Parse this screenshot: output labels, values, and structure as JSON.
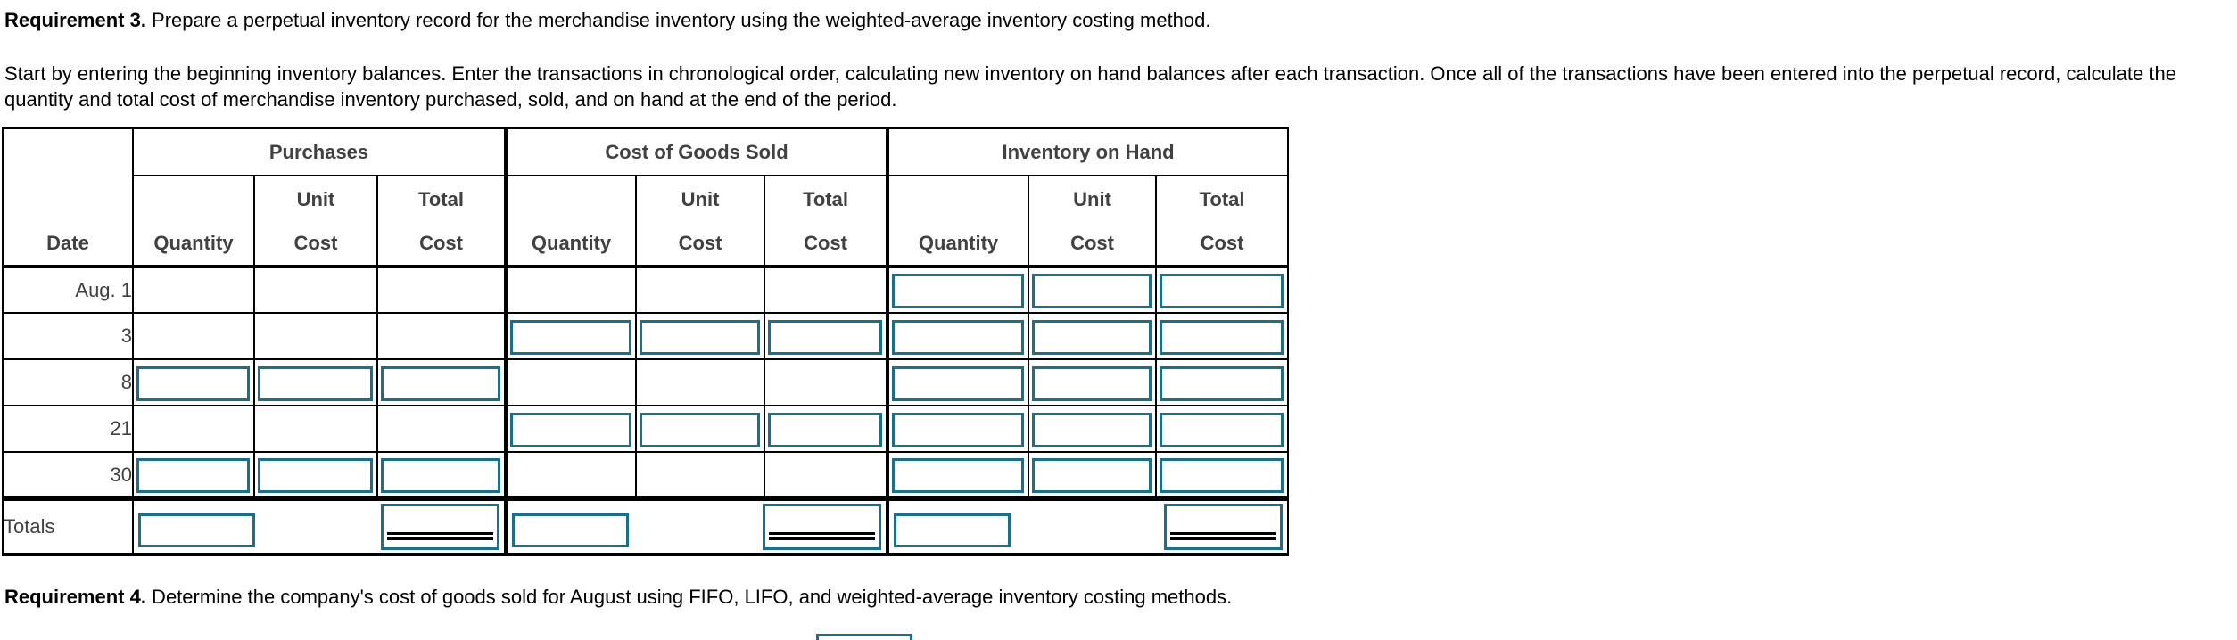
{
  "requirement3": {
    "label": "Requirement 3.",
    "text": " Prepare a perpetual inventory record for the merchandise inventory using the weighted-average inventory costing method."
  },
  "instructions": "Start by entering the beginning inventory balances. Enter the transactions in chronological order, calculating new inventory on hand balances after each transaction. Once all of the transactions have been entered into the perpetual record, calculate the quantity and total cost of merchandise inventory purchased, sold, and on hand at the end of the period.",
  "requirement4": {
    "label": "Requirement 4.",
    "text": " Determine the company's cost of goods sold for August using FIFO, LIFO, and weighted-average inventory costing methods."
  },
  "table": {
    "column_groups": [
      {
        "label": "Purchases"
      },
      {
        "label": "Cost of Goods Sold"
      },
      {
        "label": "Inventory on Hand"
      }
    ],
    "headers": {
      "date": "Date",
      "quantity": "Quantity",
      "unit": "Unit",
      "total": "Total",
      "cost": "Cost"
    },
    "rows": [
      {
        "date": "Aug. 1",
        "inputs": {
          "purchases": false,
          "cogs": false,
          "inventory": true
        }
      },
      {
        "date": "3",
        "inputs": {
          "purchases": false,
          "cogs": true,
          "inventory": true
        }
      },
      {
        "date": "8",
        "inputs": {
          "purchases": true,
          "cogs": false,
          "inventory": true
        }
      },
      {
        "date": "21",
        "inputs": {
          "purchases": false,
          "cogs": true,
          "inventory": true
        }
      },
      {
        "date": "30",
        "inputs": {
          "purchases": true,
          "cogs": false,
          "inventory": true
        }
      }
    ],
    "totals_label": "Totals",
    "input_value": ""
  },
  "colors": {
    "input_border": "#15718f",
    "table_text": "#414141",
    "body_text": "#000000",
    "table_border": "#000000"
  }
}
